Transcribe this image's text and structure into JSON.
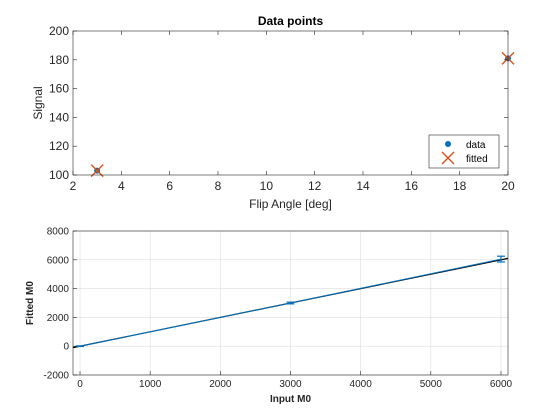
{
  "chart_data": [
    {
      "type": "scatter",
      "title": "Data points",
      "xlabel": "Flip Angle [deg]",
      "ylabel": "Signal",
      "xlim": [
        2,
        20
      ],
      "ylim": [
        100,
        200
      ],
      "xticks": [
        2,
        4,
        6,
        8,
        10,
        12,
        14,
        16,
        18,
        20
      ],
      "yticks": [
        100,
        120,
        140,
        160,
        180,
        200
      ],
      "grid": false,
      "legend_position": "bottom-right",
      "series": [
        {
          "name": "data",
          "marker": "filled-circle",
          "color": "#0072BD",
          "x": [
            3,
            20
          ],
          "y": [
            103,
            181
          ]
        },
        {
          "name": "fitted",
          "marker": "x",
          "color": "#D95319",
          "x": [
            3,
            20
          ],
          "y": [
            103,
            181
          ]
        }
      ]
    },
    {
      "type": "line",
      "title": "",
      "xlabel": "Input M0",
      "ylabel": "Fitted M0",
      "xlim": [
        -100,
        6100
      ],
      "ylim": [
        -2000,
        8000
      ],
      "xticks": [
        0,
        1000,
        2000,
        3000,
        4000,
        5000,
        6000
      ],
      "yticks": [
        -2000,
        0,
        2000,
        4000,
        6000,
        8000
      ],
      "grid": true,
      "series": [
        {
          "style": "identity-line",
          "color": "#000000",
          "x": [
            -100,
            6100
          ],
          "y": [
            -100,
            6100
          ]
        },
        {
          "style": "errorbar",
          "color": "#0072BD",
          "x": [
            0,
            3000,
            6000
          ],
          "y": [
            0,
            3000,
            6050
          ],
          "err": [
            20,
            60,
            200
          ]
        }
      ]
    }
  ]
}
